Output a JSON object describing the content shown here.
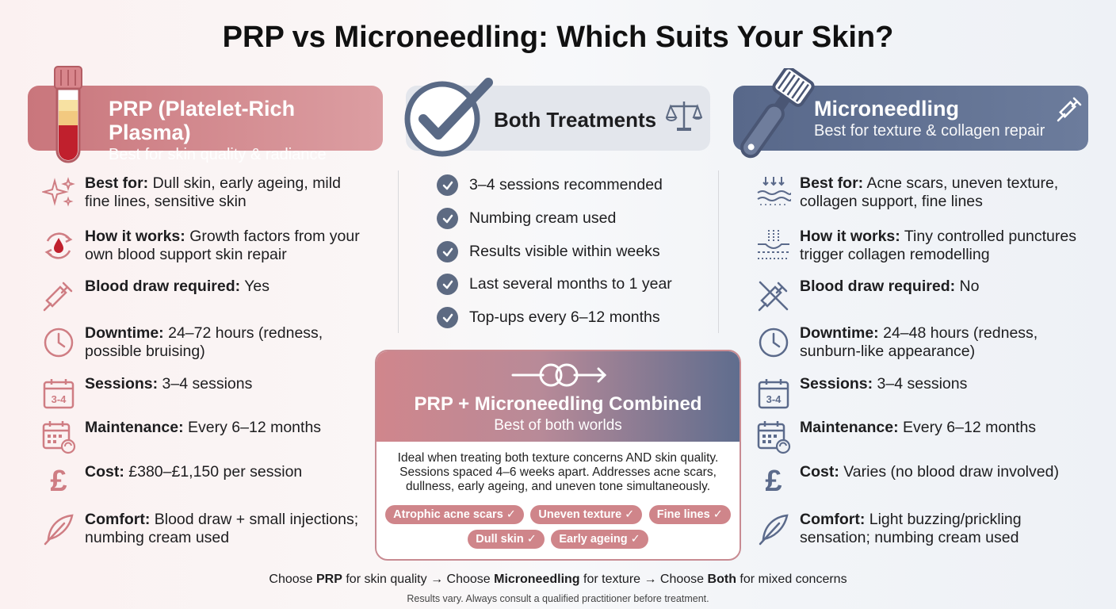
{
  "title": "PRP vs Microneedling: Which Suits Your Skin?",
  "colors": {
    "prp": "#cf7d83",
    "microneedling": "#5b6a8b",
    "check": "#5d6a82"
  },
  "prp": {
    "header_title": "PRP (Platelet-Rich Plasma)",
    "header_sub": "Best for skin quality & radiance",
    "header_icon": "blood-tube-icon",
    "items": [
      {
        "icon": "sparkle-icon",
        "label": "Best for:",
        "value": "Dull skin, early ageing, mild fine lines, sensitive skin"
      },
      {
        "icon": "blood-cycle-icon",
        "label": "How it works:",
        "value": "Growth factors from your own blood support skin repair"
      },
      {
        "icon": "syringe-icon",
        "label": "Blood draw required:",
        "value": "Yes"
      },
      {
        "icon": "clock-icon",
        "label": "Downtime:",
        "value": "24–72 hours (redness, possible bruising)"
      },
      {
        "icon": "calendar-icon",
        "label": "Sessions:",
        "value": "3–4 sessions",
        "icon_text": "3-4"
      },
      {
        "icon": "calendar-repeat-icon",
        "label": "Maintenance:",
        "value": "Every 6–12 months"
      },
      {
        "icon": "pound-icon",
        "label": "Cost:",
        "value": "£380–£1,150 per session",
        "icon_text": "£"
      },
      {
        "icon": "feather-icon",
        "label": "Comfort:",
        "value": "Blood draw + small injections; numbing cream used"
      }
    ]
  },
  "both": {
    "header_title": "Both Treatments",
    "items": [
      "3–4 sessions recommended",
      "Numbing cream used",
      "Results visible within weeks",
      "Last several months to 1 year",
      "Top-ups every 6–12 months"
    ]
  },
  "microneedling": {
    "header_title": "Microneedling",
    "header_sub": "Best for texture & collagen repair",
    "header_icon": "derma-roller-icon",
    "items": [
      {
        "icon": "skin-layers-icon",
        "label": "Best for:",
        "value": "Acne scars, uneven texture, collagen support, fine lines"
      },
      {
        "icon": "skin-puncture-icon",
        "label": "How it works:",
        "value": "Tiny controlled punctures trigger collagen remodelling"
      },
      {
        "icon": "no-syringe-icon",
        "label": "Blood draw required:",
        "value": "No"
      },
      {
        "icon": "clock-icon",
        "label": "Downtime:",
        "value": "24–48 hours (redness, sunburn-like appearance)"
      },
      {
        "icon": "calendar-icon",
        "label": "Sessions:",
        "value": "3–4 sessions",
        "icon_text": "3-4"
      },
      {
        "icon": "calendar-repeat-icon",
        "label": "Maintenance:",
        "value": "Every 6–12 months"
      },
      {
        "icon": "pound-icon",
        "label": "Cost:",
        "value": "Varies (no blood draw involved)",
        "icon_text": "£"
      },
      {
        "icon": "feather-icon",
        "label": "Comfort:",
        "value": "Light buzzing/prickling sensation; numbing cream used"
      }
    ]
  },
  "combined": {
    "title": "PRP + Microneedling Combined",
    "subtitle": "Best of both worlds",
    "description": "Ideal when treating both texture concerns AND skin quality. Sessions spaced 4–6 weeks apart. Addresses acne scars, dullness, early ageing, and uneven tone simultaneously.",
    "chips_row1": [
      "Atrophic acne scars ✓",
      "Uneven texture ✓",
      "Fine lines ✓"
    ],
    "chips_row2": [
      "Dull skin ✓",
      "Early ageing ✓"
    ]
  },
  "footer": {
    "p1": "Choose ",
    "b1": "PRP",
    "p2": " for skin quality → Choose ",
    "b2": "Microneedling",
    "p3": " for texture → Choose ",
    "b3": "Both",
    "p4": " for mixed concerns",
    "disclaimer": "Results vary. Always consult a qualified practitioner before treatment."
  }
}
